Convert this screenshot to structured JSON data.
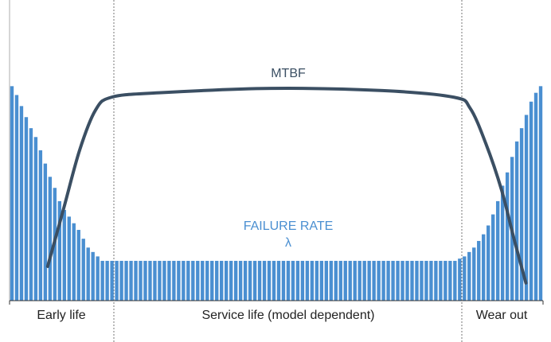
{
  "chart_data": {
    "type": "bar",
    "ylim": [
      0,
      100
    ],
    "xlim": [
      0,
      112
    ],
    "series": [
      {
        "name": "FAILURE RATE",
        "color": "#4a8fd1",
        "type": "bar",
        "values": [
          97,
          93,
          88,
          83,
          78,
          74,
          68,
          62,
          56,
          51,
          45,
          41,
          38,
          35,
          32,
          28,
          24,
          22,
          20,
          18,
          18,
          18,
          18,
          18,
          18,
          18,
          18,
          18,
          18,
          18,
          18,
          18,
          18,
          18,
          18,
          18,
          18,
          18,
          18,
          18,
          18,
          18,
          18,
          18,
          18,
          18,
          18,
          18,
          18,
          18,
          18,
          18,
          18,
          18,
          18,
          18,
          18,
          18,
          18,
          18,
          18,
          18,
          18,
          18,
          18,
          18,
          18,
          18,
          18,
          18,
          18,
          18,
          18,
          18,
          18,
          18,
          18,
          18,
          18,
          18,
          18,
          18,
          18,
          18,
          18,
          18,
          18,
          18,
          18,
          18,
          18,
          18,
          18,
          18,
          19,
          20,
          22,
          24,
          27,
          30,
          34,
          39,
          45,
          52,
          58,
          65,
          72,
          78,
          84,
          90,
          94,
          97
        ]
      },
      {
        "name": "MTBF",
        "color": "#3b4f63",
        "type": "line",
        "x": [
          8,
          11.4,
          14.7,
          18,
          21.4,
          31.4,
          54.8,
          78.3,
          93.3,
          96.7,
          100,
          103.3,
          105.9,
          108.4
        ],
        "values": [
          15.5,
          42,
          68,
          86,
          92,
          94,
          96,
          95,
          92,
          87,
          71,
          50,
          28,
          8
        ]
      }
    ],
    "annotations": [
      "λ"
    ],
    "regions": [
      "Early life",
      "Service life (model dependent)",
      "Wear out"
    ]
  }
}
